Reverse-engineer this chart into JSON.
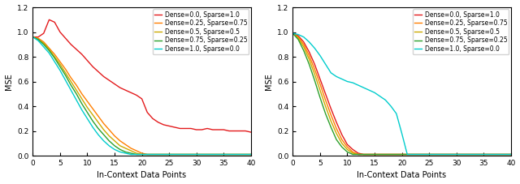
{
  "xlabel": "In-Context Data Points",
  "ylabel": "MSE",
  "xlim": [
    0,
    40
  ],
  "ylim": [
    0.0,
    1.2
  ],
  "yticks": [
    0.0,
    0.2,
    0.4,
    0.6,
    0.8,
    1.0,
    1.2
  ],
  "xticks": [
    0,
    5,
    10,
    15,
    20,
    25,
    30,
    35,
    40
  ],
  "legend_labels": [
    "Dense=0.0, Sparse=1.0",
    "Dense=0.25, Sparse=0.75",
    "Dense=0.5, Sparse=0.5",
    "Dense=0.75, Sparse=0.25",
    "Dense=1.0, Sparse=0.0"
  ],
  "colors": [
    "#e31a1c",
    "#ff7f00",
    "#ccaa00",
    "#2ca02c",
    "#00cccc"
  ],
  "linewidth": 1.0,
  "background_color": "#ffffff",
  "left_plot": {
    "curves": {
      "red": {
        "x": [
          0,
          1,
          2,
          3,
          4,
          5,
          6,
          7,
          8,
          9,
          10,
          11,
          12,
          13,
          14,
          15,
          16,
          17,
          18,
          19,
          20,
          21,
          22,
          23,
          24,
          25,
          26,
          27,
          28,
          29,
          30,
          31,
          32,
          33,
          34,
          35,
          36,
          37,
          38,
          39,
          40
        ],
        "y": [
          0.96,
          0.96,
          0.99,
          1.1,
          1.08,
          1.0,
          0.95,
          0.9,
          0.86,
          0.82,
          0.77,
          0.72,
          0.68,
          0.64,
          0.61,
          0.58,
          0.55,
          0.53,
          0.51,
          0.49,
          0.46,
          0.35,
          0.3,
          0.27,
          0.25,
          0.24,
          0.23,
          0.22,
          0.22,
          0.22,
          0.21,
          0.21,
          0.22,
          0.21,
          0.21,
          0.21,
          0.2,
          0.2,
          0.2,
          0.2,
          0.19
        ]
      },
      "orange": {
        "x": [
          0,
          1,
          2,
          3,
          4,
          5,
          6,
          7,
          8,
          9,
          10,
          11,
          12,
          13,
          14,
          15,
          16,
          17,
          18,
          19,
          20,
          21,
          22,
          23,
          24,
          25,
          26,
          27,
          28,
          29,
          30,
          31,
          32,
          33,
          34,
          35,
          36,
          37,
          38,
          39,
          40
        ],
        "y": [
          0.96,
          0.95,
          0.92,
          0.87,
          0.82,
          0.76,
          0.7,
          0.63,
          0.57,
          0.5,
          0.44,
          0.38,
          0.32,
          0.26,
          0.21,
          0.16,
          0.12,
          0.09,
          0.06,
          0.04,
          0.02,
          0.01,
          0.01,
          0.01,
          0.01,
          0.01,
          0.01,
          0.01,
          0.01,
          0.01,
          0.01,
          0.01,
          0.01,
          0.01,
          0.01,
          0.01,
          0.01,
          0.01,
          0.01,
          0.01,
          0.01
        ]
      },
      "yellow": {
        "x": [
          0,
          1,
          2,
          3,
          4,
          5,
          6,
          7,
          8,
          9,
          10,
          11,
          12,
          13,
          14,
          15,
          16,
          17,
          18,
          19,
          20,
          21,
          22,
          23,
          24,
          25,
          26,
          27,
          28,
          29,
          30,
          31,
          32,
          33,
          34,
          35,
          36,
          37,
          38,
          39,
          40
        ],
        "y": [
          0.96,
          0.94,
          0.91,
          0.86,
          0.8,
          0.74,
          0.67,
          0.6,
          0.53,
          0.46,
          0.39,
          0.33,
          0.27,
          0.21,
          0.16,
          0.12,
          0.08,
          0.06,
          0.04,
          0.02,
          0.01,
          0.01,
          0.01,
          0.01,
          0.01,
          0.01,
          0.01,
          0.01,
          0.01,
          0.01,
          0.01,
          0.01,
          0.01,
          0.01,
          0.01,
          0.01,
          0.01,
          0.01,
          0.01,
          0.01,
          0.01
        ]
      },
      "green": {
        "x": [
          0,
          1,
          2,
          3,
          4,
          5,
          6,
          7,
          8,
          9,
          10,
          11,
          12,
          13,
          14,
          15,
          16,
          17,
          18,
          19,
          20,
          21,
          22,
          23,
          24,
          25,
          26,
          27,
          28,
          29,
          30,
          31,
          32,
          33,
          34,
          35,
          36,
          37,
          38,
          39,
          40
        ],
        "y": [
          0.96,
          0.94,
          0.9,
          0.85,
          0.79,
          0.72,
          0.65,
          0.57,
          0.5,
          0.42,
          0.35,
          0.28,
          0.22,
          0.17,
          0.12,
          0.08,
          0.05,
          0.03,
          0.02,
          0.01,
          0.01,
          0.01,
          0.01,
          0.01,
          0.01,
          0.01,
          0.01,
          0.01,
          0.01,
          0.01,
          0.01,
          0.01,
          0.01,
          0.01,
          0.01,
          0.01,
          0.01,
          0.01,
          0.01,
          0.01,
          0.01
        ]
      },
      "cyan": {
        "x": [
          0,
          1,
          2,
          3,
          4,
          5,
          6,
          7,
          8,
          9,
          10,
          11,
          12,
          13,
          14,
          15,
          16,
          17,
          18,
          19,
          20,
          21,
          22,
          23,
          24,
          25,
          26,
          27,
          28,
          29,
          30,
          31,
          32,
          33,
          34,
          35,
          36,
          37,
          38,
          39,
          40
        ],
        "y": [
          0.96,
          0.93,
          0.88,
          0.83,
          0.76,
          0.69,
          0.61,
          0.53,
          0.45,
          0.37,
          0.3,
          0.23,
          0.17,
          0.12,
          0.08,
          0.05,
          0.03,
          0.02,
          0.01,
          0.01,
          0.01,
          0.01,
          0.01,
          0.01,
          0.01,
          0.01,
          0.01,
          0.01,
          0.01,
          0.01,
          0.01,
          0.01,
          0.01,
          0.01,
          0.01,
          0.01,
          0.01,
          0.01,
          0.01,
          0.01,
          0.01
        ]
      }
    }
  },
  "right_plot": {
    "curves": {
      "red": {
        "x": [
          0,
          1,
          2,
          3,
          4,
          5,
          6,
          7,
          8,
          9,
          10,
          11,
          12,
          13,
          14,
          15,
          16,
          17,
          18,
          19,
          20,
          21,
          22,
          23,
          24,
          25,
          26,
          27,
          28,
          29,
          30,
          31,
          32,
          33,
          34,
          35,
          36,
          37,
          38,
          39,
          40
        ],
        "y": [
          0.99,
          0.97,
          0.92,
          0.84,
          0.74,
          0.62,
          0.5,
          0.38,
          0.27,
          0.17,
          0.09,
          0.05,
          0.02,
          0.01,
          0.01,
          0.01,
          0.01,
          0.01,
          0.01,
          0.01,
          0.01,
          0.01,
          0.01,
          0.01,
          0.01,
          0.01,
          0.01,
          0.01,
          0.01,
          0.01,
          0.01,
          0.01,
          0.01,
          0.01,
          0.01,
          0.01,
          0.01,
          0.01,
          0.01,
          0.01,
          0.01
        ]
      },
      "orange": {
        "x": [
          0,
          1,
          2,
          3,
          4,
          5,
          6,
          7,
          8,
          9,
          10,
          11,
          12,
          13,
          14,
          15,
          16,
          17,
          18,
          19,
          20,
          21,
          22,
          23,
          24,
          25,
          26,
          27,
          28,
          29,
          30,
          31,
          32,
          33,
          34,
          35,
          36,
          37,
          38,
          39,
          40
        ],
        "y": [
          0.99,
          0.96,
          0.9,
          0.81,
          0.7,
          0.58,
          0.45,
          0.33,
          0.22,
          0.13,
          0.07,
          0.03,
          0.01,
          0.01,
          0.01,
          0.01,
          0.01,
          0.01,
          0.01,
          0.01,
          0.01,
          0.01,
          0.01,
          0.01,
          0.01,
          0.01,
          0.01,
          0.01,
          0.01,
          0.01,
          0.01,
          0.01,
          0.01,
          0.01,
          0.01,
          0.01,
          0.01,
          0.01,
          0.01,
          0.01,
          0.01
        ]
      },
      "yellow": {
        "x": [
          0,
          1,
          2,
          3,
          4,
          5,
          6,
          7,
          8,
          9,
          10,
          11,
          12,
          13,
          14,
          15,
          16,
          17,
          18,
          19,
          20,
          21,
          22,
          23,
          24,
          25,
          26,
          27,
          28,
          29,
          30,
          31,
          32,
          33,
          34,
          35,
          36,
          37,
          38,
          39,
          40
        ],
        "y": [
          0.99,
          0.95,
          0.88,
          0.78,
          0.66,
          0.53,
          0.4,
          0.28,
          0.18,
          0.1,
          0.05,
          0.02,
          0.01,
          0.01,
          0.01,
          0.01,
          0.01,
          0.01,
          0.01,
          0.01,
          0.01,
          0.01,
          0.01,
          0.01,
          0.01,
          0.01,
          0.01,
          0.01,
          0.01,
          0.01,
          0.01,
          0.01,
          0.01,
          0.01,
          0.01,
          0.01,
          0.01,
          0.01,
          0.01,
          0.01,
          0.01
        ]
      },
      "green": {
        "x": [
          0,
          1,
          2,
          3,
          4,
          5,
          6,
          7,
          8,
          9,
          10,
          11,
          12,
          13,
          14,
          15,
          16,
          17,
          18,
          19,
          20,
          21,
          22,
          23,
          24,
          25,
          26,
          27,
          28,
          29,
          30,
          31,
          32,
          33,
          34,
          35,
          36,
          37,
          38,
          39,
          40
        ],
        "y": [
          0.99,
          0.94,
          0.85,
          0.74,
          0.61,
          0.47,
          0.34,
          0.23,
          0.13,
          0.07,
          0.03,
          0.01,
          0.01,
          0.01,
          0.01,
          0.01,
          0.01,
          0.01,
          0.01,
          0.01,
          0.01,
          0.01,
          0.01,
          0.01,
          0.01,
          0.01,
          0.01,
          0.01,
          0.01,
          0.01,
          0.01,
          0.01,
          0.01,
          0.01,
          0.01,
          0.01,
          0.01,
          0.01,
          0.01,
          0.01,
          0.01
        ]
      },
      "cyan": {
        "x": [
          0,
          1,
          2,
          3,
          4,
          5,
          6,
          7,
          8,
          9,
          10,
          11,
          12,
          13,
          14,
          15,
          16,
          17,
          18,
          19,
          20,
          21,
          22,
          23,
          24,
          25,
          26,
          27,
          28,
          29,
          30,
          31,
          32,
          33,
          34,
          35,
          36,
          37,
          38,
          39,
          40
        ],
        "y": [
          0.99,
          0.98,
          0.96,
          0.92,
          0.87,
          0.81,
          0.74,
          0.67,
          0.64,
          0.62,
          0.6,
          0.59,
          0.57,
          0.55,
          0.53,
          0.51,
          0.48,
          0.45,
          0.4,
          0.34,
          0.18,
          0.01,
          0.01,
          0.01,
          0.01,
          0.01,
          0.01,
          0.01,
          0.01,
          0.01,
          0.01,
          0.01,
          0.01,
          0.01,
          0.01,
          0.01,
          0.01,
          0.01,
          0.01,
          0.01,
          0.01
        ]
      }
    }
  }
}
